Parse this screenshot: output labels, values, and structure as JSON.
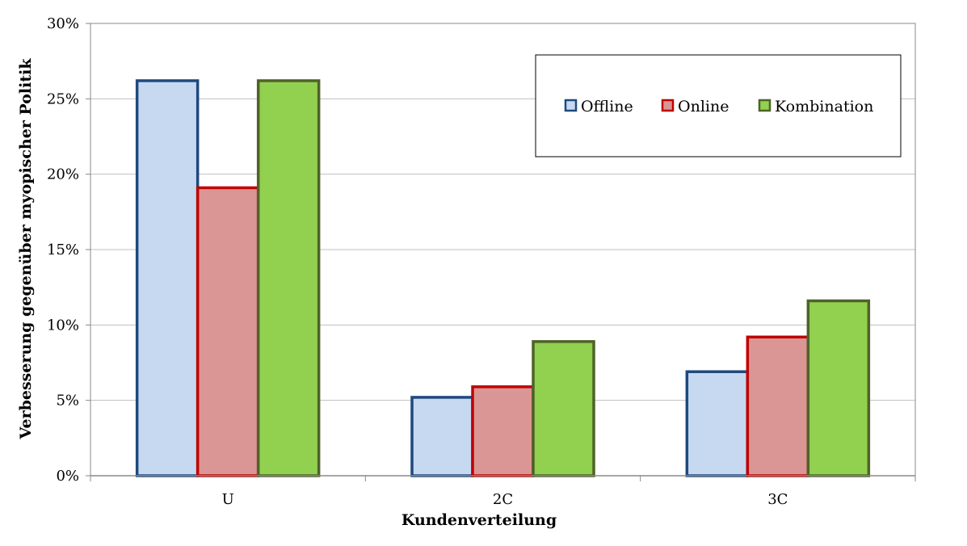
{
  "chart_data": {
    "type": "bar",
    "title": "",
    "xlabel": "Kundenverteilung",
    "ylabel": "Verbesserung gegenüber myopischer Politik",
    "categories": [
      "U",
      "2C",
      "3C"
    ],
    "ylim": [
      0,
      30
    ],
    "yticks": [
      0,
      5,
      10,
      15,
      20,
      25,
      30
    ],
    "ytick_labels": [
      "0%",
      "5%",
      "10%",
      "15%",
      "20%",
      "25%",
      "30%"
    ],
    "grid": true,
    "legend_position": "top-right",
    "series": [
      {
        "name": "Offline",
        "values": [
          26.2,
          5.2,
          6.9
        ],
        "fill": "#c6d9f1",
        "stroke": "#1f497d"
      },
      {
        "name": "Online",
        "values": [
          19.1,
          5.9,
          9.2
        ],
        "fill": "#d99694",
        "stroke": "#c00000"
      },
      {
        "name": "Kombination",
        "values": [
          26.2,
          8.9,
          11.6
        ],
        "fill": "#92d050",
        "stroke": "#4f6228"
      }
    ]
  }
}
